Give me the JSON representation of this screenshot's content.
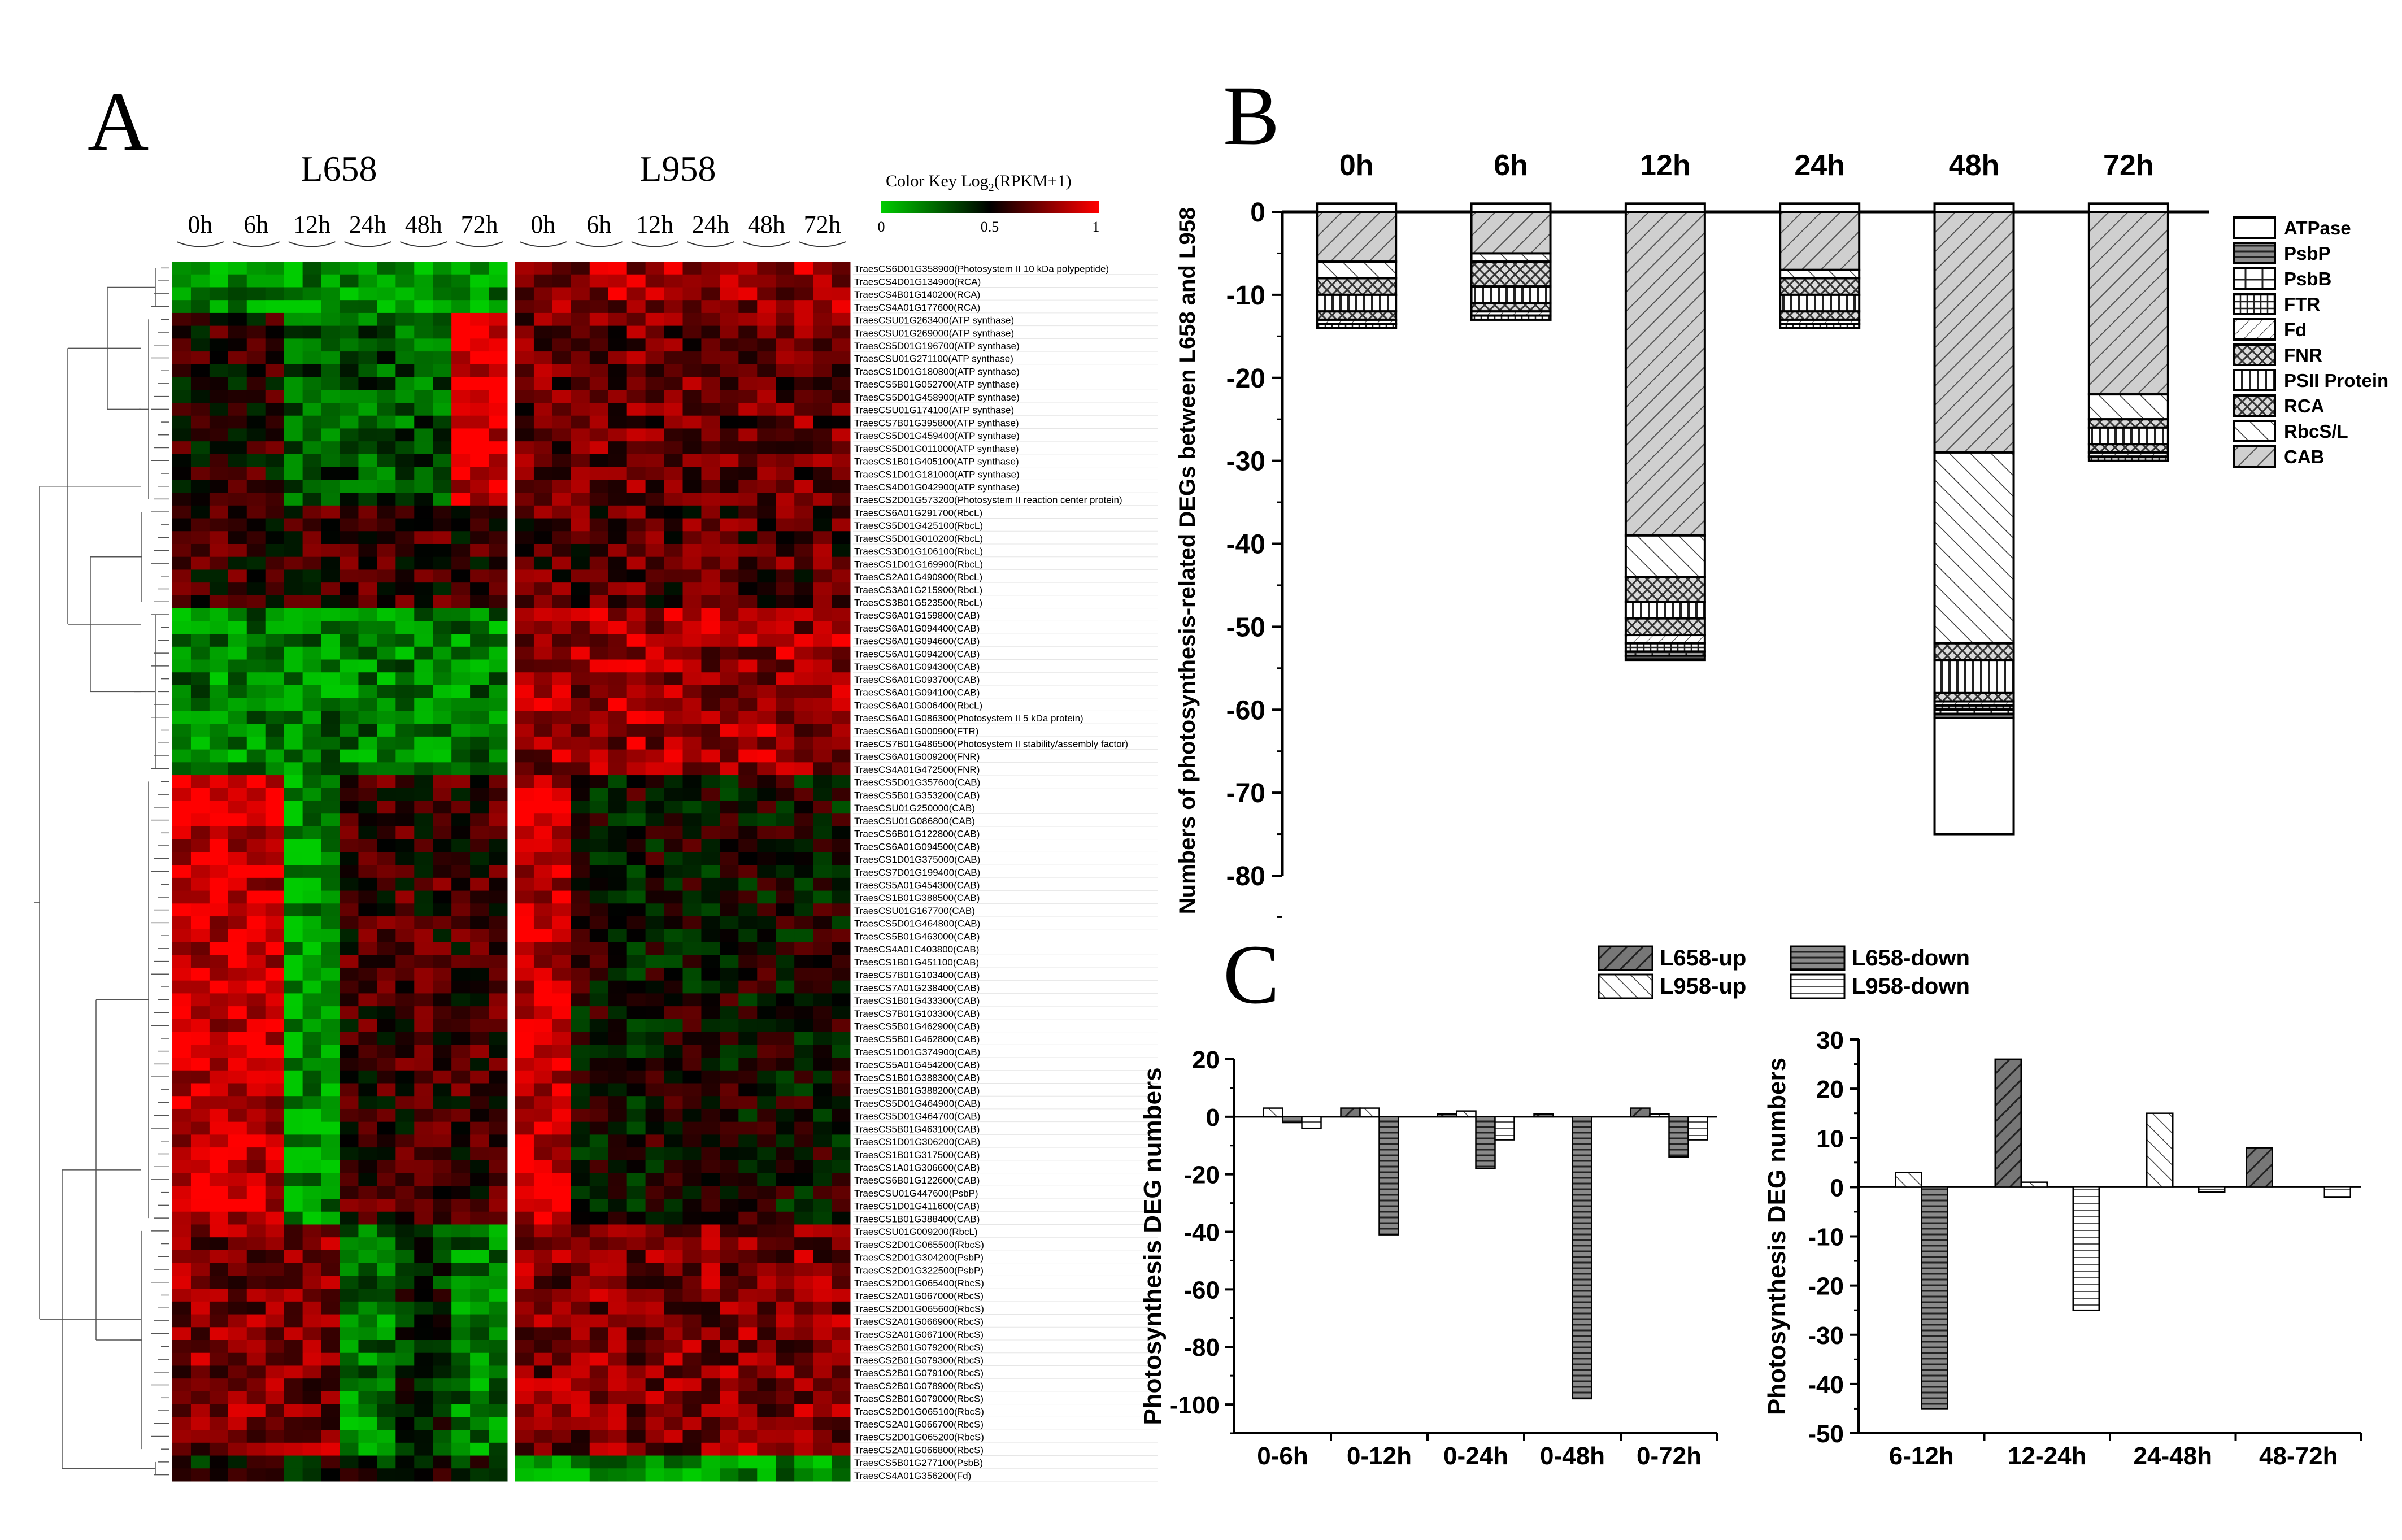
{
  "panel_labels": {
    "a": "A",
    "b": "B",
    "c": "C"
  },
  "heatmap": {
    "group_labels": [
      "L658",
      "L958"
    ],
    "time_labels": [
      "0h",
      "6h",
      "12h",
      "24h",
      "48h",
      "72h"
    ],
    "color_key": {
      "title": "Color Key Log",
      "title_sub": "2",
      "title_suffix": "(RPKM+1)",
      "ticks": [
        "0",
        "0.5",
        "1"
      ],
      "low_color": "#00cc00",
      "mid_color": "#000000",
      "high_color": "#ff0000"
    },
    "genes": [
      "TraesCS6D01G358900(Photosystem II 10 kDa polypeptide)",
      "TraesCS4D01G134900(RCA)",
      "TraesCS4B01G140200(RCA)",
      "TraesCS4A01G177600(RCA)",
      "TraesCSU01G263400(ATP synthase)",
      "TraesCSU01G269000(ATP synthase)",
      "TraesCS5D01G196700(ATP synthase)",
      "TraesCSU01G271100(ATP synthase)",
      "TraesCS1D01G180800(ATP synthase)",
      "TraesCS5B01G052700(ATP synthase)",
      "TraesCS5D01G458900(ATP synthase)",
      "TraesCSU01G174100(ATP synthase)",
      "TraesCS7B01G395800(ATP synthase)",
      "TraesCS5D01G459400(ATP synthase)",
      "TraesCS5D01G011000(ATP synthase)",
      "TraesCS1B01G405100(ATP synthase)",
      "TraesCS1D01G181000(ATP synthase)",
      "TraesCS4D01G042900(ATP synthase)",
      "TraesCS2D01G573200(Photosystem II reaction center protein)",
      "TraesCS6A01G291700(RbcL)",
      "TraesCS5D01G425100(RbcL)",
      "TraesCS5D01G010200(RbcL)",
      "TraesCS3D01G106100(RbcL)",
      "TraesCS1D01G169900(RbcL)",
      "TraesCS2A01G490900(RbcL)",
      "TraesCS3A01G215900(RbcL)",
      "TraesCS3B01G523500(RbcL)",
      "TraesCS6A01G159800(CAB)",
      "TraesCS6A01G094400(CAB)",
      "TraesCS6A01G094600(CAB)",
      "TraesCS6A01G094200(CAB)",
      "TraesCS6A01G094300(CAB)",
      "TraesCS6A01G093700(CAB)",
      "TraesCS6A01G094100(CAB)",
      "TraesCS6A01G006400(RbcL)",
      "TraesCS6A01G086300(Photosystem II 5 kDa protein)",
      "TraesCS6A01G000900(FTR)",
      "TraesCS7B01G486500(Photosystem II stability/assembly factor)",
      "TraesCS6A01G009200(FNR)",
      "TraesCS4A01G472500(FNR)",
      "TraesCS5D01G357600(CAB)",
      "TraesCS5B01G353200(CAB)",
      "TraesCSU01G250000(CAB)",
      "TraesCSU01G086800(CAB)",
      "TraesCS6B01G122800(CAB)",
      "TraesCS6A01G094500(CAB)",
      "TraesCS1D01G375000(CAB)",
      "TraesCS7D01G199400(CAB)",
      "TraesCS5A01G454300(CAB)",
      "TraesCS1B01G388500(CAB)",
      "TraesCSU01G167700(CAB)",
      "TraesCS5D01G464800(CAB)",
      "TraesCS5B01G463000(CAB)",
      "TraesCS4A01C403800(CAB)",
      "TraesCS1B01G451100(CAB)",
      "TraesCS7B01G103400(CAB)",
      "TraesCS7A01G238400(CAB)",
      "TraesCS1B01G433300(CAB)",
      "TraesCS7B01G103300(CAB)",
      "TraesCS5B01G462900(CAB)",
      "TraesCS5B01G462800(CAB)",
      "TraesCS1D01G374900(CAB)",
      "TraesCS5A01G454200(CAB)",
      "TraesCS1B01G388300(CAB)",
      "TraesCS1B01G388200(CAB)",
      "TraesCS5D01G464900(CAB)",
      "TraesCS5D01G464700(CAB)",
      "TraesCS5B01G463100(CAB)",
      "TraesCS1D01G306200(CAB)",
      "TraesCS1B01G317500(CAB)",
      "TraesCS1A01G306600(CAB)",
      "TraesCS6B01G122600(CAB)",
      "TraesCSU01G447600(PsbP)",
      "TraesCS1D01G411600(CAB)",
      "TraesCS1B01G388400(CAB)",
      "TraesCSU01G009200(RbcL)",
      "TraesCS2D01G065500(RbcS)",
      "TraesCS2D01G304200(PsbP)",
      "TraesCS2D01G322500(PsbP)",
      "TraesCS2D01G065400(RbcS)",
      "TraesCS2A01G067000(RbcS)",
      "TraesCS2D01G065600(RbcS)",
      "TraesCS2A01G066900(RbcS)",
      "TraesCS2A01G067100(RbcS)",
      "TraesCS2B01G079200(RbcS)",
      "TraesCS2B01G079300(RbcS)",
      "TraesCS2B01G079100(RbcS)",
      "TraesCS2B01G078900(RbcS)",
      "TraesCS2B01G079000(RbcS)",
      "TraesCS2D01G065100(RbcS)",
      "TraesCS2A01G066700(RbcS)",
      "TraesCS2D01G065200(RbcS)",
      "TraesCS2A01G066800(RbcS)",
      "TraesCS5B01G277100(PsbB)",
      "TraesCS4A01G356200(Fd)"
    ]
  },
  "chart_data": [
    {
      "panel": "B",
      "type": "bar",
      "subtype": "stacked",
      "categories": [
        "0h",
        "6h",
        "12h",
        "24h",
        "48h",
        "72h"
      ],
      "ylabel": "Numbers of photosynthesis-related DEGs between L658 and L958",
      "ylim": [
        -80,
        0
      ],
      "yticks": [
        0,
        -10,
        -20,
        -30,
        -40,
        -50,
        -60,
        -70,
        -80
      ],
      "legend_position": "right",
      "series": [
        {
          "name": "CAB",
          "values": [
            -6,
            -5,
            -39,
            -7,
            -29,
            -22
          ]
        },
        {
          "name": "RbcS/L",
          "values": [
            -2,
            -1,
            -5,
            -1,
            -23,
            -3
          ]
        },
        {
          "name": "RCA",
          "values": [
            -2,
            -3,
            -3,
            -2,
            -2,
            -1
          ]
        },
        {
          "name": "PSII Protein",
          "values": [
            -2,
            -2,
            -2,
            -2,
            -4,
            -2
          ]
        },
        {
          "name": "FNR",
          "values": [
            -1,
            -1,
            -2,
            -1,
            -1,
            -1
          ]
        },
        {
          "name": "Fd",
          "values": [
            -0.5,
            -0.5,
            -1,
            -0.5,
            -0.5,
            -0.5
          ]
        },
        {
          "name": "FTR",
          "values": [
            -0.5,
            -0.5,
            -1,
            -0.5,
            -0.5,
            -0.5
          ]
        },
        {
          "name": "PsbB",
          "values": [
            0,
            0,
            -0.5,
            0,
            -0.5,
            0
          ]
        },
        {
          "name": "PsbP",
          "values": [
            0,
            0,
            -0.5,
            0,
            -0.5,
            0
          ]
        },
        {
          "name": "ATPase",
          "values": [
            0,
            0,
            0,
            0,
            -14,
            0
          ]
        }
      ],
      "legend": [
        "ATPase",
        "PsbP",
        "PsbB",
        "FTR",
        "Fd",
        "FNR",
        "PSII Protein",
        "RCA",
        "RbcS/L",
        "CAB"
      ]
    },
    {
      "panel": "C-left",
      "type": "bar",
      "categories": [
        "0-6h",
        "0-12h",
        "0-24h",
        "0-48h",
        "0-72h"
      ],
      "ylabel": "Photosynthesis DEG numbers",
      "ylim": [
        -110,
        20
      ],
      "yticks": [
        20,
        0,
        -20,
        -40,
        -60,
        -80,
        -100
      ],
      "series": [
        {
          "name": "L658-up",
          "values": [
            0,
            3,
            1,
            1,
            3
          ]
        },
        {
          "name": "L958-up",
          "values": [
            3,
            3,
            2,
            0,
            1
          ]
        },
        {
          "name": "L658-down",
          "values": [
            -2,
            -41,
            -18,
            -98,
            -14
          ]
        },
        {
          "name": "L958-down",
          "values": [
            -4,
            0,
            -8,
            0,
            -8
          ]
        }
      ]
    },
    {
      "panel": "C-right",
      "type": "bar",
      "categories": [
        "6-12h",
        "12-24h",
        "24-48h",
        "48-72h"
      ],
      "ylabel": "Photosynthesis DEG numbers",
      "ylim": [
        -50,
        30
      ],
      "yticks": [
        30,
        20,
        10,
        0,
        -10,
        -20,
        -30,
        -40,
        -50
      ],
      "series": [
        {
          "name": "L658-up",
          "values": [
            0,
            26,
            0,
            8
          ]
        },
        {
          "name": "L958-up",
          "values": [
            3,
            1,
            15,
            0
          ]
        },
        {
          "name": "L658-down",
          "values": [
            -45,
            0,
            0,
            0
          ]
        },
        {
          "name": "L958-down",
          "values": [
            0,
            -25,
            -1,
            -2
          ]
        }
      ]
    }
  ],
  "legend_c": [
    "L658-up",
    "L958-up",
    "L658-down",
    "L958-down"
  ]
}
